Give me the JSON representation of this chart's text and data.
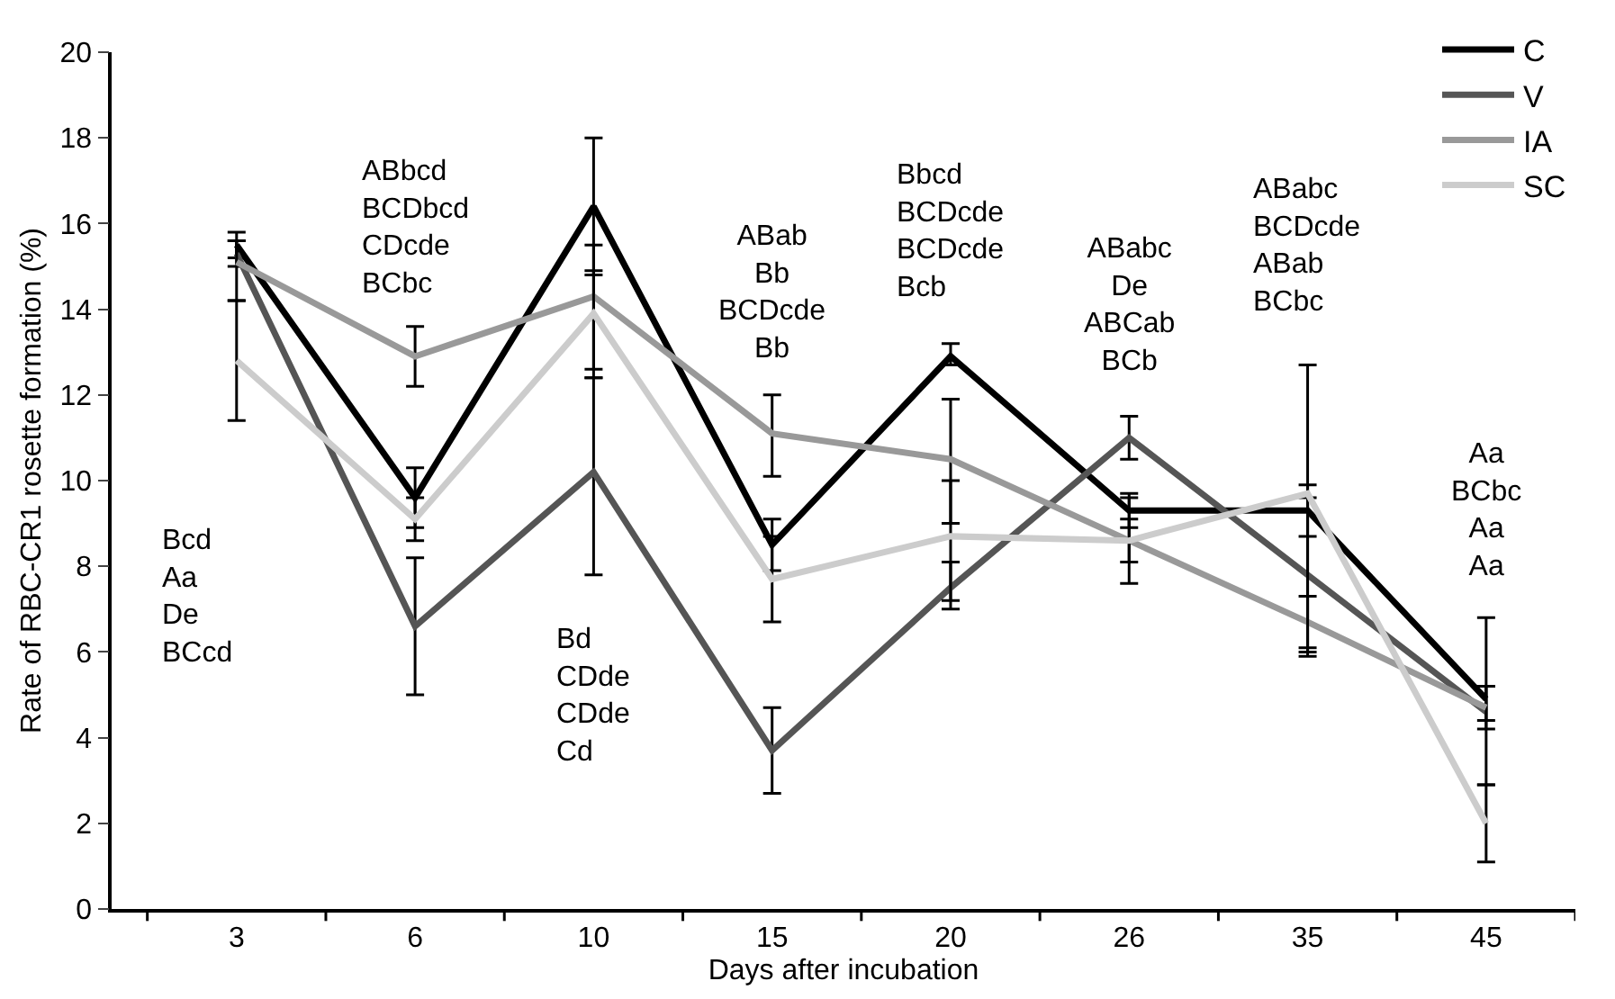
{
  "chart_data": {
    "type": "line",
    "xlabel": "Days after incubation",
    "ylabel": "Rate of RBC-CR1 rosette formation (%)",
    "categories": [
      "3",
      "6",
      "10",
      "15",
      "20",
      "26",
      "35",
      "45"
    ],
    "ylim": [
      0,
      20
    ],
    "yticks": [
      0,
      2,
      4,
      6,
      8,
      10,
      12,
      14,
      16,
      18,
      20
    ],
    "legend": "top right",
    "marker": "none",
    "line_style": "solid",
    "series": [
      {
        "name": "C",
        "color": "#000000",
        "values": [
          15.5,
          9.6,
          16.4,
          8.5,
          12.9,
          9.3,
          9.3,
          4.9
        ],
        "errors": [
          [
            15.2,
            15.8
          ],
          [
            8.9,
            10.3
          ],
          [
            14.8,
            18.0
          ],
          [
            7.9,
            9.1
          ],
          [
            12.7,
            13.2
          ],
          [
            8.9,
            9.7
          ],
          [
            8.7,
            9.9
          ],
          [
            4.4,
            5.2
          ]
        ]
      },
      {
        "name": "V",
        "color": "#555555",
        "values": [
          15.3,
          6.6,
          10.2,
          3.7,
          7.5,
          11.0,
          7.8,
          4.6
        ],
        "errors": [
          [
            15.0,
            15.6
          ],
          [
            5.0,
            8.2
          ],
          [
            7.8,
            12.4
          ],
          [
            2.7,
            4.7
          ],
          [
            7.0,
            8.1
          ],
          [
            10.5,
            11.5
          ],
          [
            5.9,
            9.6
          ],
          [
            2.9,
            6.8
          ]
        ]
      },
      {
        "name": "IA",
        "color": "#999999",
        "values": [
          15.1,
          12.9,
          14.3,
          11.1,
          10.5,
          8.6,
          6.7,
          4.7
        ],
        "errors": [
          [
            14.2,
            15.6
          ],
          [
            12.2,
            13.6
          ],
          [
            12.6,
            15.5
          ],
          [
            10.1,
            12.0
          ],
          [
            9.0,
            11.9
          ],
          [
            7.6,
            9.6
          ],
          [
            6.0,
            7.3
          ],
          [
            4.2,
            5.2
          ]
        ]
      },
      {
        "name": "SC",
        "color": "#cccccc",
        "values": [
          12.8,
          9.1,
          13.9,
          7.7,
          8.7,
          8.6,
          9.7,
          2.0
        ],
        "errors": [
          [
            11.4,
            14.2
          ],
          [
            8.6,
            9.6
          ],
          [
            12.4,
            14.9
          ],
          [
            6.7,
            8.7
          ],
          [
            7.2,
            10.0
          ],
          [
            8.1,
            9.1
          ],
          [
            6.1,
            12.7
          ],
          [
            1.1,
            2.9
          ]
        ]
      }
    ],
    "annotations": [
      "Bcd\nAa\nDe\nBCcd",
      "ABbcd\nBCDbcd\nCDcde\nBCbc",
      "Bd\nCDde\nCDde\nCd",
      "ABab\nBb\nBCDcde\nBb",
      "Bbcd\nBCDcde\nBCDcde\nBcb",
      "ABabc\nDe\nABCab\nBCb",
      "ABabc\nBCDcde\nABab\nBCbc",
      "Aa\nBCbc\nAa\nAa"
    ]
  }
}
